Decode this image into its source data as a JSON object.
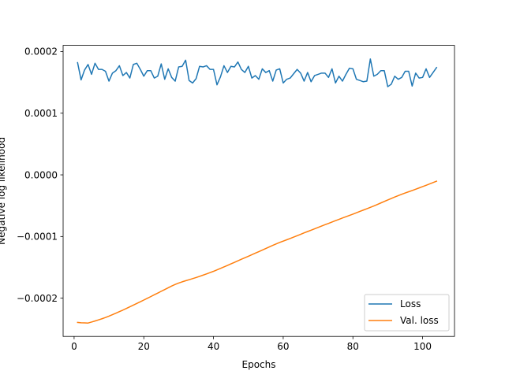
{
  "chart_data": {
    "type": "line",
    "xlabel": "Epochs",
    "ylabel": "Negative log likelihood",
    "xlim": [
      -3.15,
      109.15
    ],
    "ylim": [
      -0.000262,
      0.00021
    ],
    "x_ticks": [
      0,
      20,
      40,
      60,
      80,
      100
    ],
    "x_tick_labels": [
      "0",
      "20",
      "40",
      "60",
      "80",
      "100"
    ],
    "y_ticks": [
      -0.0002,
      -0.0001,
      0.0,
      0.0001,
      0.0002
    ],
    "y_tick_labels": [
      "−0.0002",
      "−0.0001",
      "0.0000",
      "0.0001",
      "0.0002"
    ],
    "grid": false,
    "legend_position": "lower-right",
    "series": [
      {
        "name": "Loss",
        "color": "#1f77b4",
        "x": [
          1,
          2,
          3,
          4,
          5,
          6,
          7,
          8,
          9,
          10,
          11,
          12,
          13,
          14,
          15,
          16,
          17,
          18,
          19,
          20,
          21,
          22,
          23,
          24,
          25,
          26,
          27,
          28,
          29,
          30,
          31,
          32,
          33,
          34,
          35,
          36,
          37,
          38,
          39,
          40,
          41,
          42,
          43,
          44,
          45,
          46,
          47,
          48,
          49,
          50,
          51,
          52,
          53,
          54,
          55,
          56,
          57,
          58,
          59,
          60,
          61,
          62,
          63,
          64,
          65,
          66,
          67,
          68,
          69,
          70,
          71,
          72,
          73,
          74,
          75,
          76,
          77,
          78,
          79,
          80,
          81,
          82,
          83,
          84,
          85,
          86,
          87,
          88,
          89,
          90,
          91,
          92,
          93,
          94,
          95,
          96,
          97,
          98,
          99,
          100,
          101,
          102,
          103,
          104
        ],
        "values": [
          0.000182,
          0.000154,
          0.00017,
          0.000179,
          0.000163,
          0.000181,
          0.000171,
          0.000171,
          0.000168,
          0.000152,
          0.000165,
          0.000169,
          0.000177,
          0.000161,
          0.000166,
          0.000157,
          0.000179,
          0.000181,
          0.000171,
          0.00016,
          0.000169,
          0.000169,
          0.000157,
          0.00016,
          0.00018,
          0.000155,
          0.000172,
          0.000158,
          0.000152,
          0.000175,
          0.000176,
          0.000186,
          0.000153,
          0.000149,
          0.000156,
          0.000176,
          0.000175,
          0.000177,
          0.000171,
          0.000171,
          0.000146,
          0.000159,
          0.000177,
          0.000166,
          0.000176,
          0.000175,
          0.000183,
          0.000171,
          0.000166,
          0.000176,
          0.000157,
          0.000161,
          0.000155,
          0.000172,
          0.000166,
          0.000169,
          0.000152,
          0.00017,
          0.000172,
          0.000149,
          0.000155,
          0.000157,
          0.000164,
          0.000171,
          0.000165,
          0.000152,
          0.000166,
          0.000151,
          0.000161,
          0.000163,
          0.000165,
          0.000165,
          0.000158,
          0.000172,
          0.000149,
          0.00016,
          0.000152,
          0.000163,
          0.000173,
          0.000172,
          0.000155,
          0.000153,
          0.000151,
          0.000152,
          0.000188,
          0.00016,
          0.000163,
          0.000169,
          0.000169,
          0.000143,
          0.000147,
          0.00016,
          0.000155,
          0.000158,
          0.000168,
          0.000168,
          0.000144,
          0.000165,
          0.000157,
          0.000158,
          0.000172,
          0.000158,
          0.000166,
          0.000174
        ]
      },
      {
        "name": "Val. loss",
        "color": "#ff7f0e",
        "x": [
          1,
          2,
          3,
          4,
          5,
          6,
          7,
          8,
          9,
          10,
          11,
          12,
          13,
          14,
          15,
          16,
          17,
          18,
          19,
          20,
          21,
          22,
          23,
          24,
          25,
          26,
          27,
          28,
          29,
          30,
          31,
          32,
          33,
          34,
          35,
          36,
          37,
          38,
          39,
          40,
          41,
          42,
          43,
          44,
          45,
          46,
          47,
          48,
          49,
          50,
          51,
          52,
          53,
          54,
          55,
          56,
          57,
          58,
          59,
          60,
          61,
          62,
          63,
          64,
          65,
          66,
          67,
          68,
          69,
          70,
          71,
          72,
          73,
          74,
          75,
          76,
          77,
          78,
          79,
          80,
          81,
          82,
          83,
          84,
          85,
          86,
          87,
          88,
          89,
          90,
          91,
          92,
          93,
          94,
          95,
          96,
          97,
          98,
          99,
          100,
          101,
          102,
          103,
          104
        ],
        "values": [
          -0.0002393,
          -0.0002398,
          -0.0002401,
          -0.0002403,
          -0.0002387,
          -0.000237,
          -0.0002352,
          -0.0002333,
          -0.0002313,
          -0.0002291,
          -0.0002267,
          -0.0002243,
          -0.0002218,
          -0.0002193,
          -0.0002166,
          -0.0002139,
          -0.0002112,
          -0.0002085,
          -0.0002058,
          -0.000203,
          -0.0002002,
          -0.0001974,
          -0.0001945,
          -0.0001917,
          -0.0001888,
          -0.000186,
          -0.0001831,
          -0.0001803,
          -0.0001777,
          -0.0001755,
          -0.0001735,
          -0.0001717,
          -0.00017,
          -0.0001683,
          -0.0001665,
          -0.0001646,
          -0.0001626,
          -0.0001606,
          -0.0001585,
          -0.0001564,
          -0.0001541,
          -0.0001517,
          -0.0001493,
          -0.0001469,
          -0.0001444,
          -0.0001419,
          -0.0001394,
          -0.0001369,
          -0.0001345,
          -0.000132,
          -0.0001295,
          -0.000127,
          -0.0001245,
          -0.000122,
          -0.0001195,
          -0.0001169,
          -0.0001144,
          -0.0001119,
          -0.0001096,
          -0.0001074,
          -0.0001053,
          -0.0001031,
          -0.0001009,
          -9.87e-05,
          -9.64e-05,
          -9.41e-05,
          -9.19e-05,
          -8.97e-05,
          -8.75e-05,
          -8.53e-05,
          -8.3e-05,
          -8.08e-05,
          -7.87e-05,
          -7.65e-05,
          -7.43e-05,
          -7.22e-05,
          -7e-05,
          -6.79e-05,
          -6.58e-05,
          -6.37e-05,
          -6.15e-05,
          -5.93e-05,
          -5.71e-05,
          -5.49e-05,
          -5.27e-05,
          -5.04e-05,
          -4.8e-05,
          -4.56e-05,
          -4.31e-05,
          -4.07e-05,
          -3.83e-05,
          -3.6e-05,
          -3.37e-05,
          -3.15e-05,
          -2.94e-05,
          -2.74e-05,
          -2.54e-05,
          -2.33e-05,
          -2.12e-05,
          -1.9e-05,
          -1.69e-05,
          -1.47e-05,
          -1.25e-05,
          -1.03e-05
        ]
      }
    ]
  }
}
